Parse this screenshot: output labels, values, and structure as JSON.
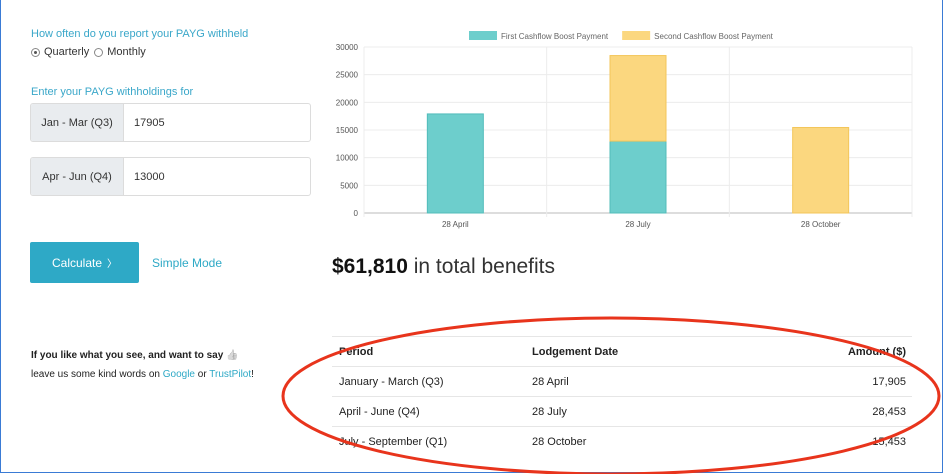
{
  "form": {
    "frequency_question": "How often do you report your PAYG withheld",
    "options": [
      {
        "label": "Quarterly",
        "selected": true
      },
      {
        "label": "Monthly",
        "selected": false
      }
    ],
    "enter_label": "Enter your PAYG withholdings for",
    "inputs": [
      {
        "label": "Jan - Mar (Q3)",
        "value": "17905"
      },
      {
        "label": "Apr - Jun (Q4)",
        "value": "13000"
      }
    ],
    "calculate_label": "Calculate",
    "calculate_chevron": "〉",
    "simple_mode_label": "Simple Mode"
  },
  "review": {
    "line1": "If you like what you see, and want to say",
    "thumb_icon": "👍",
    "prefix": "leave us some kind words on ",
    "google": "Google",
    "or": " or ",
    "trustpilot": "TrustPilot",
    "suffix": "!"
  },
  "chart_data": {
    "type": "bar",
    "stacked": true,
    "categories": [
      "28 April",
      "28 July",
      "28 October"
    ],
    "series": [
      {
        "name": "First Cashflow Boost Payment",
        "values": [
          17905,
          13000,
          0
        ],
        "color": "#6dcecc"
      },
      {
        "name": "Second Cashflow Boost Payment",
        "values": [
          0,
          15453,
          15453
        ],
        "color": "#fbd77f"
      }
    ],
    "ylim": [
      0,
      30000
    ],
    "yticks": [
      "0",
      "5000",
      "10000",
      "15000",
      "20000",
      "25000",
      "30000"
    ],
    "grid": true,
    "legend": "top"
  },
  "summary": {
    "amount": "$61,810",
    "text": " in total benefits"
  },
  "table": {
    "headers": [
      "Period",
      "Lodgement Date",
      "Amount ($)"
    ],
    "rows": [
      [
        "January - March (Q3)",
        "28 April",
        "17,905"
      ],
      [
        "April - June (Q4)",
        "28 July",
        "28,453"
      ],
      [
        "July - September (Q1)",
        "28 October",
        "15,453"
      ]
    ]
  },
  "annotation_color": "#e8341c"
}
